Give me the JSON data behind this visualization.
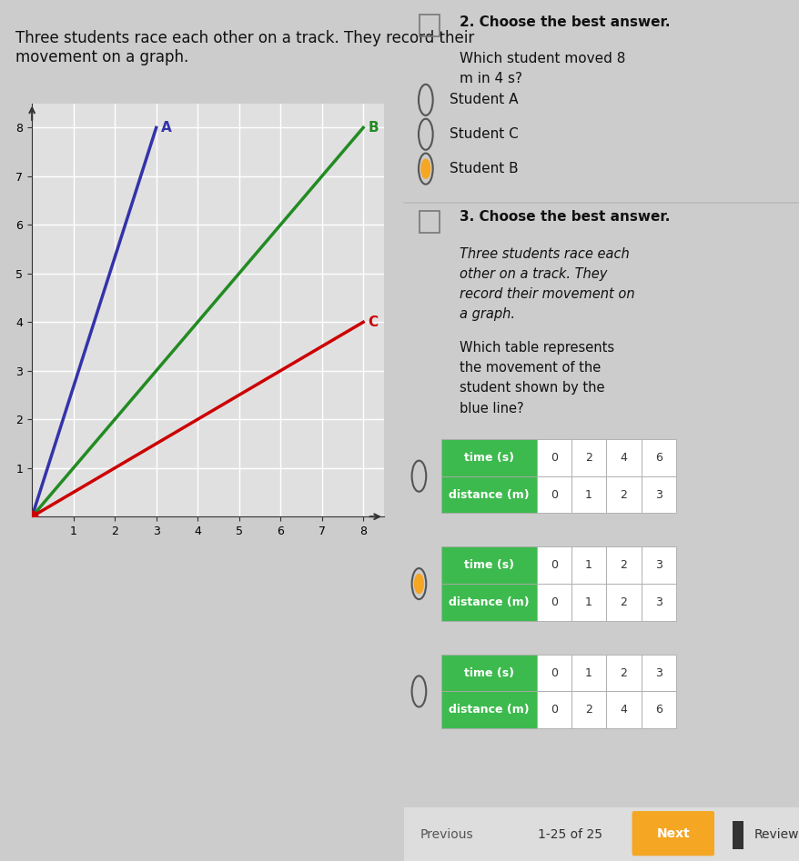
{
  "graph": {
    "xlim": [
      0,
      8.5
    ],
    "ylim": [
      0,
      8.5
    ],
    "xticks": [
      1,
      2,
      3,
      4,
      5,
      6,
      7,
      8
    ],
    "yticks": [
      1,
      2,
      3,
      4,
      5,
      6,
      7,
      8
    ],
    "lines": [
      {
        "label": "A",
        "x": [
          0,
          3
        ],
        "y": [
          0,
          8
        ],
        "color": "#3333aa",
        "linewidth": 2.5
      },
      {
        "label": "B",
        "x": [
          0,
          8
        ],
        "y": [
          0,
          8
        ],
        "color": "#228B22",
        "linewidth": 2.5
      },
      {
        "label": "C",
        "x": [
          0,
          8
        ],
        "y": [
          0,
          4
        ],
        "color": "#cc0000",
        "linewidth": 2.5
      }
    ],
    "origin_dot_color": "#cc0000",
    "background_color": "#e0e0e0",
    "grid_color": "#ffffff",
    "axis_color": "#333333"
  },
  "left_panel": {
    "description_text": "Three students race each other on a track. They record their\nmovement on a graph.",
    "text_fontsize": 12
  },
  "right_panel_q2": {
    "question_number": "2",
    "question_header": "Choose the best answer.",
    "question_text": "Which student moved 8\nm in 4 s?",
    "options": [
      {
        "label": "Student A",
        "selected": false
      },
      {
        "label": "Student C",
        "selected": false
      },
      {
        "label": "Student B",
        "selected": true
      }
    ],
    "selected_color": "#f5a623"
  },
  "right_panel_q3": {
    "question_number": "3",
    "question_header": "Choose the best answer.",
    "question_text_italic": "Three students race each\nother on a track. They\nrecord their movement on\na graph.",
    "question_text2": "Which table represents\nthe movement of the\nstudent shown by the\nblue line?",
    "tables": [
      {
        "selected": false,
        "rows": [
          {
            "header": "time (s)",
            "values": [
              "0",
              "2",
              "4",
              "6"
            ]
          },
          {
            "header": "distance (m)",
            "values": [
              "0",
              "1",
              "2",
              "3"
            ]
          }
        ]
      },
      {
        "selected": true,
        "rows": [
          {
            "header": "time (s)",
            "values": [
              "0",
              "1",
              "2",
              "3"
            ]
          },
          {
            "header": "distance (m)",
            "values": [
              "0",
              "1",
              "2",
              "3"
            ]
          }
        ]
      },
      {
        "selected": false,
        "rows": [
          {
            "header": "time (s)",
            "values": [
              "0",
              "1",
              "2",
              "3"
            ]
          },
          {
            "header": "distance (m)",
            "values": [
              "0",
              "2",
              "4",
              "6"
            ]
          }
        ]
      }
    ],
    "table_header_color": "#3dba4e",
    "table_header_text_color": "#ffffff",
    "table_cell_color": "#ffffff",
    "table_cell_text_color": "#333333"
  },
  "footer": {
    "previous_text": "Previous",
    "page_text": "1-25 of 25",
    "next_text": "Next",
    "next_color": "#f5a623",
    "review_text": "Review",
    "review_color": "#333333"
  },
  "bg_color": "#cccccc",
  "left_bg": "#efefef",
  "right_bg": "#e8e8e8"
}
